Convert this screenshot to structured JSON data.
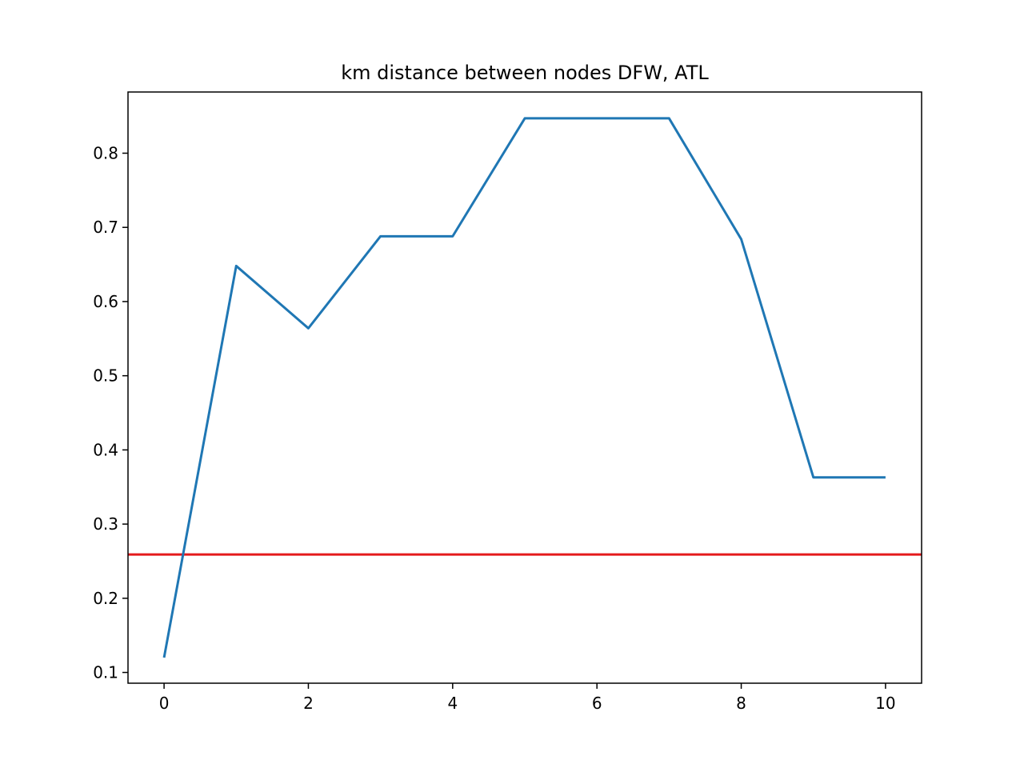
{
  "chart_data": {
    "type": "line",
    "title": "km distance between nodes DFW, ATL",
    "xlabel": "",
    "ylabel": "",
    "xlim": [
      -0.5,
      10.5
    ],
    "ylim": [
      0.0855,
      0.8825
    ],
    "grid": false,
    "legend": "none",
    "x_ticks": [
      0,
      2,
      4,
      6,
      8,
      10
    ],
    "y_ticks": [
      0.1,
      0.2,
      0.3,
      0.4,
      0.5,
      0.6,
      0.7,
      0.8
    ],
    "series": [
      {
        "x": [
          0,
          1,
          2,
          3,
          4,
          5,
          6,
          7,
          8,
          9,
          10
        ],
        "values": [
          0.12,
          0.648,
          0.564,
          0.688,
          0.688,
          0.847,
          0.847,
          0.847,
          0.684,
          0.363,
          0.363
        ],
        "color": "#1f77b4"
      }
    ],
    "reference_lines": [
      {
        "orientation": "horizontal",
        "value": 0.259,
        "color": "#e41a1c"
      }
    ]
  }
}
